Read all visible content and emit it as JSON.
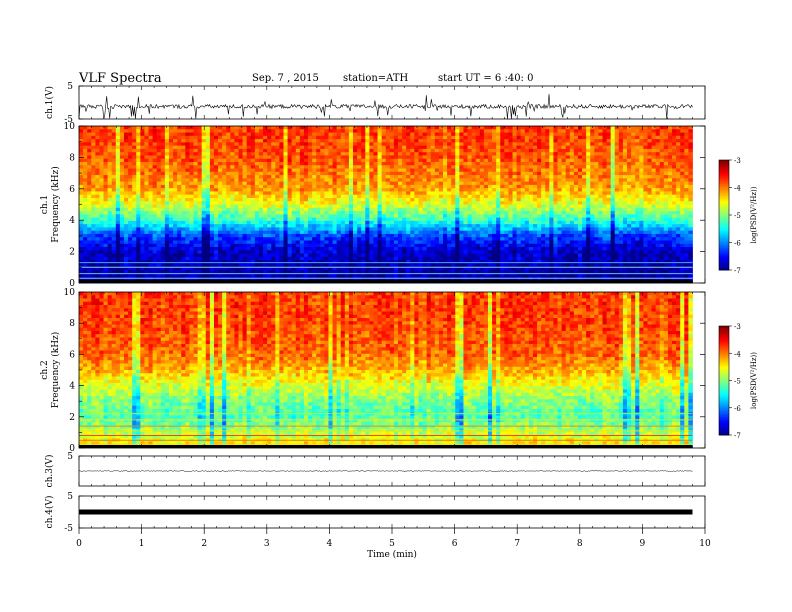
{
  "header": {
    "title": "VLF  Spectra",
    "date": "Sep. 7  , 2015",
    "station": "station=ATH",
    "start": "start  UT  =   6  :40: 0"
  },
  "chart_data": [
    {
      "type": "line",
      "panel": "ch1-waveform",
      "ylabel": "ch.1(V)",
      "ylim": [
        -5,
        5
      ],
      "yticks": [
        "5",
        "-5"
      ],
      "baseline_v": -1.2,
      "description_values": {
        "typical_range_v": [
          -2.5,
          0.5
        ],
        "spike_min_v": -4.8
      }
    },
    {
      "type": "heatmap",
      "panel": "ch1-spectrogram",
      "ylabel": [
        "ch.1",
        "Frequency  (kHz)"
      ],
      "ylim": [
        0,
        10
      ],
      "yticks": [
        "0",
        "2",
        "4",
        "6",
        "8",
        "10"
      ],
      "colorbar": {
        "label": "log(PSD(V²/Hz))",
        "ticks": [
          "-3",
          "-4",
          "-5",
          "-6",
          "-7"
        ],
        "range": [
          -7,
          -3
        ]
      },
      "profile_khz": [
        0,
        2,
        3,
        4,
        5,
        6,
        8,
        10
      ],
      "profile_logpsd": [
        -6.9,
        -6.7,
        -6.2,
        -5.3,
        -4.6,
        -4.1,
        -3.8,
        -3.7
      ]
    },
    {
      "type": "heatmap",
      "panel": "ch2-spectrogram",
      "ylabel": [
        "ch.2",
        "Frequency  (kHz)"
      ],
      "ylim": [
        0,
        10
      ],
      "yticks": [
        "0",
        "2",
        "4",
        "6",
        "8",
        "10"
      ],
      "colorbar": {
        "label": "log(PSD(V²/Hz))",
        "ticks": [
          "-3",
          "-4",
          "-5",
          "-6",
          "-7"
        ],
        "range": [
          -7,
          -3
        ]
      },
      "profile_khz": [
        0,
        1.5,
        2,
        3,
        4,
        5,
        6,
        8,
        10
      ],
      "profile_logpsd": [
        -4.3,
        -5.0,
        -5.2,
        -5.0,
        -4.6,
        -4.2,
        -3.9,
        -3.75,
        -3.7
      ]
    },
    {
      "type": "line",
      "panel": "ch3-waveform",
      "ylabel": "ch.3(V)",
      "ylim": [
        -5,
        5
      ],
      "yticks": [
        "5"
      ],
      "baseline_v": 0
    },
    {
      "type": "line",
      "panel": "ch4-waveform",
      "ylabel": "ch.4(V)",
      "ylim": [
        -5,
        5
      ],
      "yticks": [
        "5",
        "-5"
      ],
      "baseline_v": 0
    }
  ],
  "xaxis": {
    "label": "Time  (min)",
    "ticks": [
      "0",
      "1",
      "2",
      "3",
      "4",
      "5",
      "6",
      "7",
      "8",
      "9",
      "10"
    ],
    "range": [
      0,
      10
    ],
    "data_end_min": 9.8
  }
}
